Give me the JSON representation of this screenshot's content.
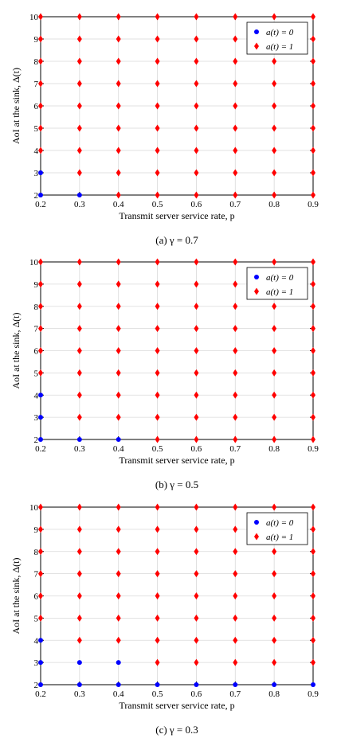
{
  "colors": {
    "a0": "#0000ff",
    "a1": "#ff0000",
    "grid": "#d9d9d9",
    "frame": "#000000"
  },
  "chart_data": [
    {
      "type": "scatter",
      "caption": "(a) γ = 0.7",
      "xlabel": "Transmit server service rate, p",
      "ylabel": "AoI at the sink, Δ(t)",
      "xlim": [
        0.2,
        0.9
      ],
      "ylim": [
        2,
        10
      ],
      "xticks": [
        "0.2",
        "0.3",
        "0.4",
        "0.5",
        "0.6",
        "0.7",
        "0.8",
        "0.9"
      ],
      "yticks": [
        "2",
        "3",
        "4",
        "5",
        "6",
        "7",
        "8",
        "9",
        "10"
      ],
      "grid": true,
      "legend": "top-right",
      "series": [
        {
          "name": "a(t) = 0",
          "marker": "circle",
          "color": "#0000ff",
          "points": [
            [
              0.2,
              2
            ],
            [
              0.2,
              3
            ],
            [
              0.3,
              2
            ]
          ]
        },
        {
          "name": "a(t) = 1",
          "marker": "diamond",
          "color": "#ff0000",
          "points": [
            [
              0.2,
              4
            ],
            [
              0.2,
              5
            ],
            [
              0.2,
              6
            ],
            [
              0.2,
              7
            ],
            [
              0.2,
              8
            ],
            [
              0.2,
              9
            ],
            [
              0.2,
              10
            ],
            [
              0.3,
              3
            ],
            [
              0.3,
              4
            ],
            [
              0.3,
              5
            ],
            [
              0.3,
              6
            ],
            [
              0.3,
              7
            ],
            [
              0.3,
              8
            ],
            [
              0.3,
              9
            ],
            [
              0.3,
              10
            ],
            [
              0.4,
              2
            ],
            [
              0.4,
              3
            ],
            [
              0.4,
              4
            ],
            [
              0.4,
              5
            ],
            [
              0.4,
              6
            ],
            [
              0.4,
              7
            ],
            [
              0.4,
              8
            ],
            [
              0.4,
              9
            ],
            [
              0.4,
              10
            ],
            [
              0.5,
              2
            ],
            [
              0.5,
              3
            ],
            [
              0.5,
              4
            ],
            [
              0.5,
              5
            ],
            [
              0.5,
              6
            ],
            [
              0.5,
              7
            ],
            [
              0.5,
              8
            ],
            [
              0.5,
              9
            ],
            [
              0.5,
              10
            ],
            [
              0.6,
              2
            ],
            [
              0.6,
              3
            ],
            [
              0.6,
              4
            ],
            [
              0.6,
              5
            ],
            [
              0.6,
              6
            ],
            [
              0.6,
              7
            ],
            [
              0.6,
              8
            ],
            [
              0.6,
              9
            ],
            [
              0.6,
              10
            ],
            [
              0.7,
              2
            ],
            [
              0.7,
              3
            ],
            [
              0.7,
              4
            ],
            [
              0.7,
              5
            ],
            [
              0.7,
              6
            ],
            [
              0.7,
              7
            ],
            [
              0.7,
              8
            ],
            [
              0.7,
              9
            ],
            [
              0.7,
              10
            ],
            [
              0.8,
              2
            ],
            [
              0.8,
              3
            ],
            [
              0.8,
              4
            ],
            [
              0.8,
              5
            ],
            [
              0.8,
              6
            ],
            [
              0.8,
              7
            ],
            [
              0.8,
              8
            ],
            [
              0.8,
              9
            ],
            [
              0.8,
              10
            ],
            [
              0.9,
              2
            ],
            [
              0.9,
              3
            ],
            [
              0.9,
              4
            ],
            [
              0.9,
              5
            ],
            [
              0.9,
              6
            ],
            [
              0.9,
              7
            ],
            [
              0.9,
              8
            ],
            [
              0.9,
              9
            ],
            [
              0.9,
              10
            ]
          ]
        }
      ]
    },
    {
      "type": "scatter",
      "caption": "(b) γ = 0.5",
      "xlabel": "Transmit server service rate, p",
      "ylabel": "AoI at the sink, Δ(t)",
      "xlim": [
        0.2,
        0.9
      ],
      "ylim": [
        2,
        10
      ],
      "xticks": [
        "0.2",
        "0.3",
        "0.4",
        "0.5",
        "0.6",
        "0.7",
        "0.8",
        "0.9"
      ],
      "yticks": [
        "2",
        "3",
        "4",
        "5",
        "6",
        "7",
        "8",
        "9",
        "10"
      ],
      "grid": true,
      "legend": "top-right",
      "series": [
        {
          "name": "a(t) = 0",
          "marker": "circle",
          "color": "#0000ff",
          "points": [
            [
              0.2,
              2
            ],
            [
              0.2,
              3
            ],
            [
              0.2,
              4
            ],
            [
              0.3,
              2
            ],
            [
              0.4,
              2
            ]
          ]
        },
        {
          "name": "a(t) = 1",
          "marker": "diamond",
          "color": "#ff0000",
          "points": [
            [
              0.2,
              5
            ],
            [
              0.2,
              6
            ],
            [
              0.2,
              7
            ],
            [
              0.2,
              8
            ],
            [
              0.2,
              9
            ],
            [
              0.2,
              10
            ],
            [
              0.3,
              3
            ],
            [
              0.3,
              4
            ],
            [
              0.3,
              5
            ],
            [
              0.3,
              6
            ],
            [
              0.3,
              7
            ],
            [
              0.3,
              8
            ],
            [
              0.3,
              9
            ],
            [
              0.3,
              10
            ],
            [
              0.4,
              3
            ],
            [
              0.4,
              4
            ],
            [
              0.4,
              5
            ],
            [
              0.4,
              6
            ],
            [
              0.4,
              7
            ],
            [
              0.4,
              8
            ],
            [
              0.4,
              9
            ],
            [
              0.4,
              10
            ],
            [
              0.5,
              2
            ],
            [
              0.5,
              3
            ],
            [
              0.5,
              4
            ],
            [
              0.5,
              5
            ],
            [
              0.5,
              6
            ],
            [
              0.5,
              7
            ],
            [
              0.5,
              8
            ],
            [
              0.5,
              9
            ],
            [
              0.5,
              10
            ],
            [
              0.6,
              2
            ],
            [
              0.6,
              3
            ],
            [
              0.6,
              4
            ],
            [
              0.6,
              5
            ],
            [
              0.6,
              6
            ],
            [
              0.6,
              7
            ],
            [
              0.6,
              8
            ],
            [
              0.6,
              9
            ],
            [
              0.6,
              10
            ],
            [
              0.7,
              2
            ],
            [
              0.7,
              3
            ],
            [
              0.7,
              4
            ],
            [
              0.7,
              5
            ],
            [
              0.7,
              6
            ],
            [
              0.7,
              7
            ],
            [
              0.7,
              8
            ],
            [
              0.7,
              9
            ],
            [
              0.7,
              10
            ],
            [
              0.8,
              2
            ],
            [
              0.8,
              3
            ],
            [
              0.8,
              4
            ],
            [
              0.8,
              5
            ],
            [
              0.8,
              6
            ],
            [
              0.8,
              7
            ],
            [
              0.8,
              8
            ],
            [
              0.8,
              9
            ],
            [
              0.8,
              10
            ],
            [
              0.9,
              2
            ],
            [
              0.9,
              3
            ],
            [
              0.9,
              4
            ],
            [
              0.9,
              5
            ],
            [
              0.9,
              6
            ],
            [
              0.9,
              7
            ],
            [
              0.9,
              8
            ],
            [
              0.9,
              9
            ],
            [
              0.9,
              10
            ]
          ]
        }
      ]
    },
    {
      "type": "scatter",
      "caption": "(c) γ = 0.3",
      "xlabel": "Transmit server service rate, p",
      "ylabel": "AoI at the sink, Δ(t)",
      "xlim": [
        0.2,
        0.9
      ],
      "ylim": [
        2,
        10
      ],
      "xticks": [
        "0.2",
        "0.3",
        "0.4",
        "0.5",
        "0.6",
        "0.7",
        "0.8",
        "0.9"
      ],
      "yticks": [
        "2",
        "3",
        "4",
        "5",
        "6",
        "7",
        "8",
        "9",
        "10"
      ],
      "grid": true,
      "legend": "top-right",
      "series": [
        {
          "name": "a(t) = 0",
          "marker": "circle",
          "color": "#0000ff",
          "points": [
            [
              0.2,
              2
            ],
            [
              0.2,
              3
            ],
            [
              0.2,
              4
            ],
            [
              0.3,
              2
            ],
            [
              0.3,
              3
            ],
            [
              0.4,
              2
            ],
            [
              0.4,
              3
            ],
            [
              0.5,
              2
            ],
            [
              0.6,
              2
            ],
            [
              0.7,
              2
            ],
            [
              0.8,
              2
            ],
            [
              0.9,
              2
            ]
          ]
        },
        {
          "name": "a(t) = 1",
          "marker": "diamond",
          "color": "#ff0000",
          "points": [
            [
              0.2,
              5
            ],
            [
              0.2,
              6
            ],
            [
              0.2,
              7
            ],
            [
              0.2,
              8
            ],
            [
              0.2,
              9
            ],
            [
              0.2,
              10
            ],
            [
              0.3,
              4
            ],
            [
              0.3,
              5
            ],
            [
              0.3,
              6
            ],
            [
              0.3,
              7
            ],
            [
              0.3,
              8
            ],
            [
              0.3,
              9
            ],
            [
              0.3,
              10
            ],
            [
              0.4,
              4
            ],
            [
              0.4,
              5
            ],
            [
              0.4,
              6
            ],
            [
              0.4,
              7
            ],
            [
              0.4,
              8
            ],
            [
              0.4,
              9
            ],
            [
              0.4,
              10
            ],
            [
              0.5,
              3
            ],
            [
              0.5,
              4
            ],
            [
              0.5,
              5
            ],
            [
              0.5,
              6
            ],
            [
              0.5,
              7
            ],
            [
              0.5,
              8
            ],
            [
              0.5,
              9
            ],
            [
              0.5,
              10
            ],
            [
              0.6,
              3
            ],
            [
              0.6,
              4
            ],
            [
              0.6,
              5
            ],
            [
              0.6,
              6
            ],
            [
              0.6,
              7
            ],
            [
              0.6,
              8
            ],
            [
              0.6,
              9
            ],
            [
              0.6,
              10
            ],
            [
              0.7,
              3
            ],
            [
              0.7,
              4
            ],
            [
              0.7,
              5
            ],
            [
              0.7,
              6
            ],
            [
              0.7,
              7
            ],
            [
              0.7,
              8
            ],
            [
              0.7,
              9
            ],
            [
              0.7,
              10
            ],
            [
              0.8,
              3
            ],
            [
              0.8,
              4
            ],
            [
              0.8,
              5
            ],
            [
              0.8,
              6
            ],
            [
              0.8,
              7
            ],
            [
              0.8,
              8
            ],
            [
              0.8,
              9
            ],
            [
              0.8,
              10
            ],
            [
              0.9,
              3
            ],
            [
              0.9,
              4
            ],
            [
              0.9,
              5
            ],
            [
              0.9,
              6
            ],
            [
              0.9,
              7
            ],
            [
              0.9,
              8
            ],
            [
              0.9,
              9
            ],
            [
              0.9,
              10
            ]
          ]
        }
      ]
    }
  ]
}
